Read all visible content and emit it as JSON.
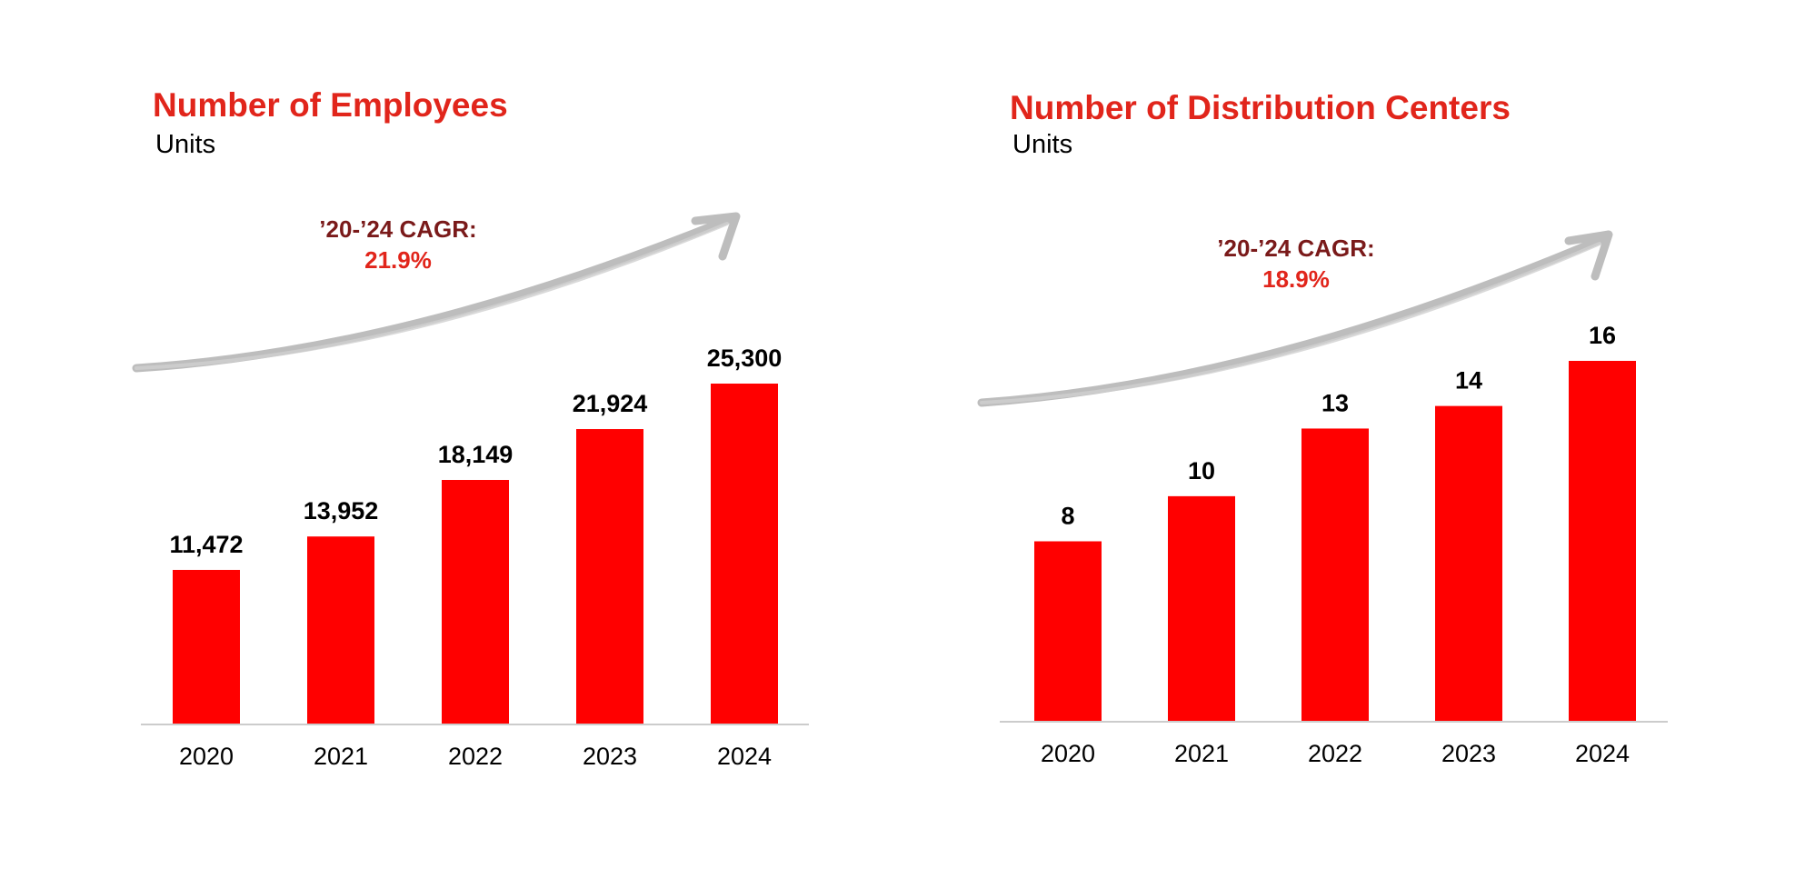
{
  "chart_data": [
    {
      "type": "bar",
      "title": "Number of Employees",
      "subtitle": "Units",
      "categories": [
        "2020",
        "2021",
        "2022",
        "2023",
        "2024"
      ],
      "values": [
        11472,
        13952,
        18149,
        21924,
        25300
      ],
      "value_labels": [
        "11,472",
        "13,952",
        "18,149",
        "21,924",
        "25,300"
      ],
      "annotation": {
        "label": "’20-’24 CAGR:",
        "value": "21.9%"
      },
      "ylim": [
        0,
        25300
      ],
      "grid": false,
      "xlabel": "",
      "ylabel": ""
    },
    {
      "type": "bar",
      "title": "Number of Distribution Centers",
      "subtitle": "Units",
      "categories": [
        "2020",
        "2021",
        "2022",
        "2023",
        "2024"
      ],
      "values": [
        8,
        10,
        13,
        14,
        16
      ],
      "value_labels": [
        "8",
        "10",
        "13",
        "14",
        "16"
      ],
      "annotation": {
        "label": "’20-’24 CAGR:",
        "value": "18.9%"
      },
      "ylim": [
        0,
        16
      ],
      "grid": false,
      "xlabel": "",
      "ylabel": ""
    }
  ],
  "colors": {
    "bar": "#ff0000",
    "title": "#e1251b",
    "cagr_label": "#7a1a1a",
    "cagr_value": "#e1251b",
    "arrow": "#bdbdbd",
    "axis": "#cccccc"
  }
}
